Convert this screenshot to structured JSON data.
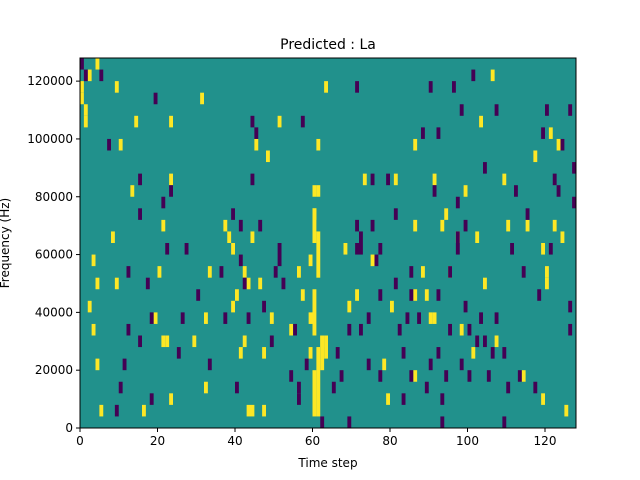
{
  "chart_data": {
    "type": "heatmap",
    "title": "Predicted : La",
    "xlabel": "Time step",
    "ylabel": "Frequency (Hz)",
    "xlim": [
      0,
      128
    ],
    "ylim": [
      0,
      128000
    ],
    "x_ticks": [
      0,
      20,
      40,
      60,
      80,
      100,
      120
    ],
    "y_ticks": [
      0,
      20000,
      40000,
      60000,
      80000,
      100000,
      120000
    ],
    "x_tick_labels": [
      "0",
      "20",
      "40",
      "60",
      "80",
      "100",
      "120"
    ],
    "y_tick_labels": [
      "0",
      "20000",
      "40000",
      "60000",
      "80000",
      "100000",
      "120000"
    ],
    "grid": false,
    "legend": "none",
    "colormap": "viridis",
    "background_value": 0,
    "colors": {
      "background": "#21918c",
      "high": "#fde725",
      "low": "#440154"
    },
    "bin_height_hz": 4000,
    "high_cells": [
      [
        1,
        120000
      ],
      [
        1,
        116000
      ],
      [
        2,
        112000
      ],
      [
        2,
        108000
      ],
      [
        3,
        124000
      ],
      [
        3,
        44000
      ],
      [
        4,
        60000
      ],
      [
        4,
        36000
      ],
      [
        5,
        52000
      ],
      [
        5,
        24000
      ],
      [
        6,
        8000
      ],
      [
        5,
        128000
      ],
      [
        9,
        68000
      ],
      [
        10,
        52000
      ],
      [
        11,
        100000
      ],
      [
        10,
        120000
      ],
      [
        14,
        84000
      ],
      [
        15,
        108000
      ],
      [
        17,
        8000
      ],
      [
        20,
        40000
      ],
      [
        21,
        56000
      ],
      [
        22,
        72000
      ],
      [
        23,
        32000
      ],
      [
        24,
        108000
      ],
      [
        24,
        88000
      ],
      [
        24,
        12000
      ],
      [
        30,
        32000
      ],
      [
        32,
        116000
      ],
      [
        33,
        16000
      ],
      [
        33,
        40000
      ],
      [
        34,
        56000
      ],
      [
        38,
        72000
      ],
      [
        39,
        68000
      ],
      [
        40,
        64000
      ],
      [
        40,
        44000
      ],
      [
        41,
        48000
      ],
      [
        42,
        28000
      ],
      [
        43,
        56000
      ],
      [
        43,
        32000
      ],
      [
        44,
        52000
      ],
      [
        45,
        68000
      ],
      [
        46,
        100000
      ],
      [
        47,
        52000
      ],
      [
        48,
        28000
      ],
      [
        48,
        8000
      ],
      [
        49,
        96000
      ],
      [
        50,
        40000
      ],
      [
        52,
        108000
      ],
      [
        55,
        36000
      ],
      [
        57,
        56000
      ],
      [
        58,
        48000
      ],
      [
        60,
        60000
      ],
      [
        60,
        40000
      ],
      [
        60,
        28000
      ],
      [
        61,
        84000
      ],
      [
        61,
        76000
      ],
      [
        62,
        100000
      ],
      [
        62,
        68000
      ],
      [
        63,
        32000
      ],
      [
        64,
        120000
      ],
      [
        69,
        64000
      ],
      [
        70,
        44000
      ],
      [
        72,
        48000
      ],
      [
        74,
        88000
      ],
      [
        76,
        60000
      ],
      [
        79,
        24000
      ],
      [
        80,
        12000
      ],
      [
        81,
        44000
      ],
      [
        82,
        88000
      ],
      [
        87,
        20000
      ],
      [
        87,
        72000
      ],
      [
        87,
        48000
      ],
      [
        87,
        100000
      ],
      [
        89,
        56000
      ],
      [
        90,
        48000
      ],
      [
        91,
        40000
      ],
      [
        92,
        88000
      ],
      [
        94,
        72000
      ],
      [
        95,
        76000
      ],
      [
        96,
        56000
      ],
      [
        98,
        68000
      ],
      [
        99,
        36000
      ],
      [
        100,
        84000
      ],
      [
        102,
        28000
      ],
      [
        103,
        68000
      ],
      [
        104,
        108000
      ],
      [
        105,
        52000
      ],
      [
        107,
        124000
      ],
      [
        108,
        32000
      ],
      [
        110,
        88000
      ],
      [
        111,
        72000
      ],
      [
        115,
        20000
      ],
      [
        116,
        72000
      ],
      [
        118,
        96000
      ],
      [
        120,
        64000
      ],
      [
        120,
        12000
      ],
      [
        121,
        56000
      ],
      [
        121,
        52000
      ],
      [
        122,
        104000
      ],
      [
        123,
        72000
      ],
      [
        124,
        100000
      ],
      [
        125,
        68000
      ],
      [
        126,
        8000
      ]
    ],
    "high_runs": [
      [
        61,
        4000,
        20000
      ],
      [
        62,
        4000,
        28000
      ],
      [
        61,
        32000,
        48000
      ],
      [
        62,
        52000,
        64000
      ],
      [
        61,
        64000,
        76000
      ],
      [
        63,
        20000,
        32000
      ],
      [
        64,
        24000,
        32000
      ],
      [
        62,
        80000,
        84000
      ],
      [
        44,
        4000,
        8000
      ],
      [
        45,
        4000,
        8000
      ],
      [
        92,
        36000,
        40000
      ],
      [
        22,
        28000,
        32000
      ]
    ],
    "low_cells": [
      [
        1,
        128000
      ],
      [
        2,
        124000
      ],
      [
        6,
        124000
      ],
      [
        8,
        100000
      ],
      [
        10,
        8000
      ],
      [
        11,
        16000
      ],
      [
        12,
        24000
      ],
      [
        13,
        56000
      ],
      [
        13,
        36000
      ],
      [
        16,
        76000
      ],
      [
        16,
        88000
      ],
      [
        16,
        32000
      ],
      [
        18,
        52000
      ],
      [
        19,
        40000
      ],
      [
        19,
        12000
      ],
      [
        20,
        116000
      ],
      [
        22,
        80000
      ],
      [
        23,
        64000
      ],
      [
        24,
        84000
      ],
      [
        26,
        28000
      ],
      [
        27,
        40000
      ],
      [
        28,
        64000
      ],
      [
        31,
        48000
      ],
      [
        34,
        24000
      ],
      [
        37,
        56000
      ],
      [
        38,
        40000
      ],
      [
        40,
        76000
      ],
      [
        41,
        16000
      ],
      [
        42,
        72000
      ],
      [
        42,
        60000
      ],
      [
        43,
        52000
      ],
      [
        44,
        40000
      ],
      [
        45,
        108000
      ],
      [
        45,
        88000
      ],
      [
        46,
        104000
      ],
      [
        47,
        72000
      ],
      [
        48,
        44000
      ],
      [
        50,
        32000
      ],
      [
        51,
        56000
      ],
      [
        53,
        52000
      ],
      [
        55,
        20000
      ],
      [
        56,
        36000
      ],
      [
        57,
        16000
      ],
      [
        57,
        12000
      ],
      [
        58,
        108000
      ],
      [
        59,
        24000
      ],
      [
        63,
        4000
      ],
      [
        66,
        16000
      ],
      [
        67,
        28000
      ],
      [
        68,
        20000
      ],
      [
        70,
        4000
      ],
      [
        70,
        36000
      ],
      [
        72,
        120000
      ],
      [
        72,
        72000
      ],
      [
        72,
        64000
      ],
      [
        73,
        36000
      ],
      [
        75,
        24000
      ],
      [
        75,
        40000
      ],
      [
        76,
        72000
      ],
      [
        76,
        88000
      ],
      [
        77,
        60000
      ],
      [
        78,
        48000
      ],
      [
        78,
        64000
      ],
      [
        78,
        20000
      ],
      [
        80,
        88000
      ],
      [
        82,
        76000
      ],
      [
        82,
        52000
      ],
      [
        83,
        36000
      ],
      [
        84,
        12000
      ],
      [
        84,
        28000
      ],
      [
        85,
        40000
      ],
      [
        86,
        48000
      ],
      [
        86,
        20000
      ],
      [
        86,
        56000
      ],
      [
        88,
        40000
      ],
      [
        89,
        104000
      ],
      [
        90,
        16000
      ],
      [
        91,
        24000
      ],
      [
        91,
        120000
      ],
      [
        92,
        84000
      ],
      [
        93,
        48000
      ],
      [
        93,
        28000
      ],
      [
        93,
        104000
      ],
      [
        94,
        12000
      ],
      [
        94,
        4000
      ],
      [
        95,
        20000
      ],
      [
        96,
        36000
      ],
      [
        96,
        56000
      ],
      [
        97,
        120000
      ],
      [
        98,
        80000
      ],
      [
        99,
        112000
      ],
      [
        99,
        24000
      ],
      [
        100,
        72000
      ],
      [
        100,
        44000
      ],
      [
        101,
        36000
      ],
      [
        102,
        124000
      ],
      [
        103,
        32000
      ],
      [
        104,
        40000
      ],
      [
        105,
        92000
      ],
      [
        105,
        32000
      ],
      [
        106,
        20000
      ],
      [
        107,
        28000
      ],
      [
        108,
        40000
      ],
      [
        110,
        28000
      ],
      [
        110,
        4000
      ],
      [
        111,
        16000
      ],
      [
        112,
        64000
      ],
      [
        113,
        84000
      ],
      [
        114,
        20000
      ],
      [
        115,
        56000
      ],
      [
        116,
        76000
      ],
      [
        118,
        16000
      ],
      [
        119,
        48000
      ],
      [
        120,
        104000
      ],
      [
        121,
        112000
      ],
      [
        122,
        64000
      ],
      [
        123,
        88000
      ],
      [
        124,
        84000
      ],
      [
        125,
        100000
      ],
      [
        127,
        44000
      ],
      [
        127,
        36000
      ],
      [
        128,
        92000
      ],
      [
        128,
        80000
      ]
    ],
    "low_runs": [
      [
        52,
        56000,
        64000
      ],
      [
        73,
        60000,
        68000
      ],
      [
        98,
        60000,
        68000
      ],
      [
        108,
        108000,
        112000
      ],
      [
        127,
        108000,
        112000
      ],
      [
        101,
        16000,
        20000
      ]
    ]
  }
}
